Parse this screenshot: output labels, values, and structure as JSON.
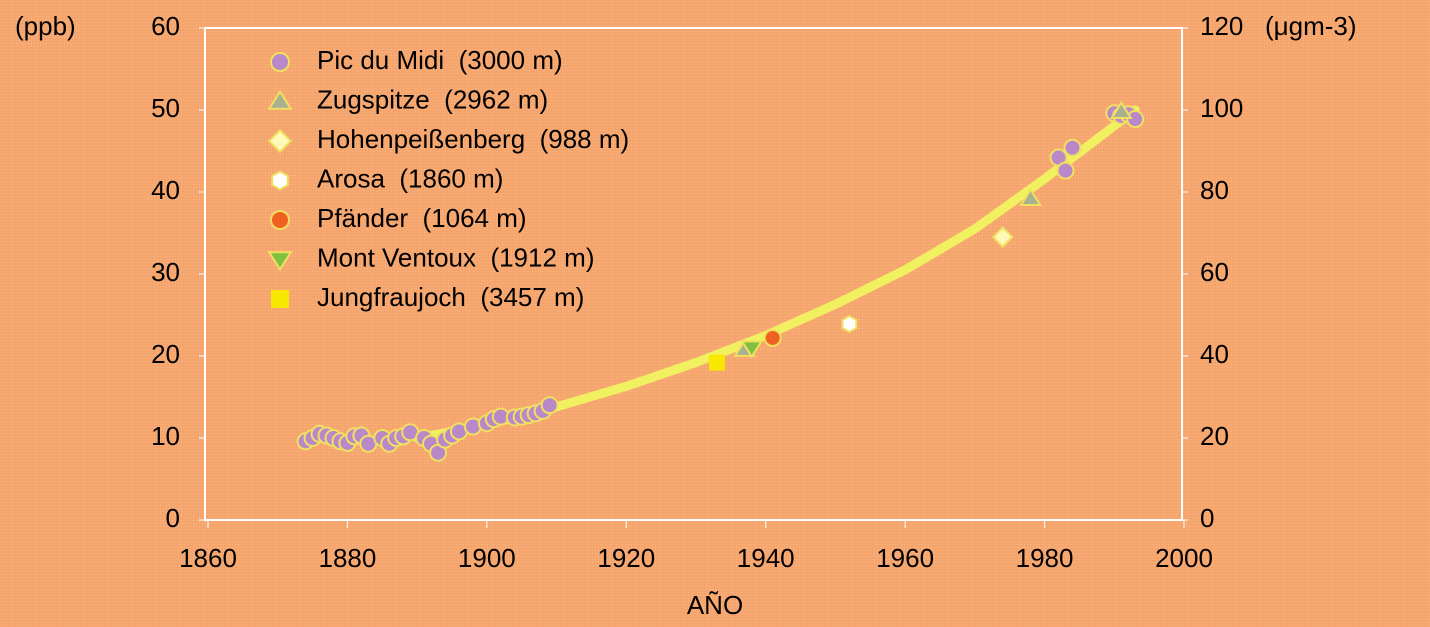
{
  "chart_data": {
    "type": "scatter",
    "y_label": "(ppb)",
    "y2_label": "(μgm-3)",
    "x_label": "AÑO",
    "xlim": [
      1860,
      2000
    ],
    "xticks": [
      1860,
      1880,
      1900,
      1920,
      1940,
      1960,
      1980,
      2000
    ],
    "ylim": [
      0,
      60
    ],
    "yticks": [
      0,
      10,
      20,
      30,
      40,
      50,
      60
    ],
    "y2lim": [
      0,
      120
    ],
    "y2ticks": [
      0,
      20,
      40,
      60,
      80,
      100,
      120
    ],
    "legend": "upper left",
    "series": [
      {
        "name": "Pic du Midi  (3000 m)",
        "color": "#b888c8",
        "marker": "circle",
        "x": [
          1874,
          1875,
          1876,
          1877,
          1878,
          1879,
          1880,
          1881,
          1882,
          1883,
          1885,
          1886,
          1887,
          1888,
          1889,
          1891,
          1892,
          1893,
          1894,
          1895,
          1896,
          1898,
          1900,
          1901,
          1902,
          1904,
          1905,
          1906,
          1907,
          1908,
          1909,
          1982,
          1983,
          1984,
          1990,
          1991,
          1992,
          1993
        ],
        "values": [
          9.6,
          10.0,
          10.5,
          10.3,
          10.0,
          9.6,
          9.4,
          10.2,
          10.3,
          9.3,
          10.0,
          9.3,
          10.0,
          10.2,
          10.7,
          10.0,
          9.3,
          8.2,
          9.8,
          10.3,
          10.8,
          11.4,
          11.8,
          12.3,
          12.6,
          12.5,
          12.6,
          12.8,
          13.0,
          13.3,
          14.0,
          44.2,
          42.6,
          45.4,
          49.6,
          49.3,
          49.5,
          48.9
        ]
      },
      {
        "name": "Zugspitze  (2962 m)",
        "color": "#a8b090",
        "marker": "triangle",
        "x": [
          1937,
          1978,
          1991
        ],
        "values": [
          20.8,
          39.2,
          49.8
        ]
      },
      {
        "name": "Hohenpeißenberg  (988 m)",
        "color": "#fff8b8",
        "marker": "diamond",
        "x": [
          1974
        ],
        "values": [
          34.5
        ]
      },
      {
        "name": "Arosa  (1860 m)",
        "color": "#ffffff",
        "marker": "hexagon",
        "x": [
          1952
        ],
        "values": [
          23.9
        ]
      },
      {
        "name": "Pfänder  (1064 m)",
        "color": "#f06020",
        "marker": "circle",
        "x": [
          1941
        ],
        "values": [
          22.2
        ]
      },
      {
        "name": "Mont Ventoux  (1912 m)",
        "color": "#80c040",
        "marker": "triangle-down",
        "x": [
          1938
        ],
        "values": [
          21.0
        ]
      },
      {
        "name": "Jungfraujoch  (3457 m)",
        "color": "#f8e800",
        "marker": "square",
        "x": [
          1933
        ],
        "values": [
          19.2
        ]
      }
    ],
    "trend": {
      "color": "#f0f060",
      "x": [
        1890,
        1900,
        1910,
        1920,
        1930,
        1940,
        1950,
        1960,
        1970,
        1980,
        1993
      ],
      "values": [
        10.0,
        11.6,
        13.8,
        16.3,
        19.2,
        22.5,
        26.3,
        30.5,
        35.5,
        41.6,
        50.0
      ]
    }
  }
}
